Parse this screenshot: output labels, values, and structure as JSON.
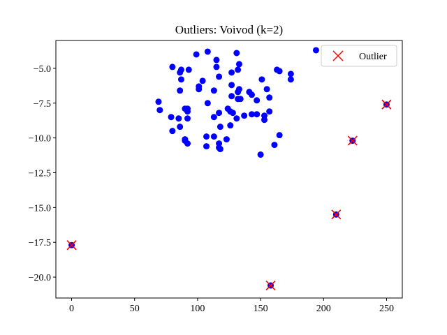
{
  "chart_data": {
    "type": "scatter",
    "title": "Outliers: Voivod (k=2)",
    "xlabel": "",
    "ylabel": "",
    "xlim": [
      -12.5,
      262.5
    ],
    "ylim": [
      -21.5,
      -3.0
    ],
    "xticks": [
      0,
      50,
      100,
      150,
      200,
      250
    ],
    "yticks": [
      -5.0,
      -7.5,
      -10.0,
      -12.5,
      -15.0,
      -17.5,
      -20.0
    ],
    "xtick_labels": [
      "0",
      "50",
      "100",
      "150",
      "200",
      "250"
    ],
    "ytick_labels": [
      "−5.0",
      "−7.5",
      "−10.0",
      "−12.5",
      "−15.0",
      "−17.5",
      "−20.0"
    ],
    "grid": false,
    "legend_position": "top-right",
    "series": [
      {
        "color": "#0000ff",
        "marker": "circle",
        "points": [
          [
            194,
            -3.7
          ],
          [
            108,
            -3.8
          ],
          [
            99,
            -4.0
          ],
          [
            131,
            -3.9
          ],
          [
            115,
            -4.4
          ],
          [
            80,
            -4.9
          ],
          [
            115,
            -4.9
          ],
          [
            87,
            -5.1
          ],
          [
            93,
            -5.1
          ],
          [
            86,
            -5.3
          ],
          [
            133,
            -4.7
          ],
          [
            132,
            -5.1
          ],
          [
            127,
            -5.3
          ],
          [
            163,
            -5.1
          ],
          [
            165,
            -5.2
          ],
          [
            174,
            -5.4
          ],
          [
            151,
            -5.8
          ],
          [
            174,
            -5.8
          ],
          [
            117,
            -5.6
          ],
          [
            87,
            -5.8
          ],
          [
            104,
            -5.9
          ],
          [
            101,
            -6.3
          ],
          [
            127,
            -6.2
          ],
          [
            101,
            -6.5
          ],
          [
            86,
            -6.6
          ],
          [
            133,
            -6.5
          ],
          [
            132,
            -6.7
          ],
          [
            113,
            -6.6
          ],
          [
            141,
            -6.7
          ],
          [
            143,
            -6.9
          ],
          [
            155,
            -6.5
          ],
          [
            157,
            -7.1
          ],
          [
            69,
            -7.4
          ],
          [
            108,
            -7.5
          ],
          [
            127,
            -7.0
          ],
          [
            134,
            -7.2
          ],
          [
            132,
            -7.2
          ],
          [
            147,
            -7.3
          ],
          [
            70,
            -8.0
          ],
          [
            90,
            -7.9
          ],
          [
            92,
            -8.1
          ],
          [
            92,
            -7.9
          ],
          [
            124,
            -7.9
          ],
          [
            117,
            -8.2
          ],
          [
            113,
            -8.5
          ],
          [
            128,
            -8.2
          ],
          [
            126,
            -8.1
          ],
          [
            143,
            -8.3
          ],
          [
            137,
            -8.4
          ],
          [
            147,
            -8.3
          ],
          [
            153,
            -8.4
          ],
          [
            157,
            -8.1
          ],
          [
            153,
            -8.7
          ],
          [
            79,
            -8.5
          ],
          [
            85,
            -8.6
          ],
          [
            92,
            -8.6
          ],
          [
            131,
            -8.6
          ],
          [
            86,
            -9.2
          ],
          [
            80,
            -9.5
          ],
          [
            118,
            -9.2
          ],
          [
            126,
            -9.1
          ],
          [
            90,
            -10.1
          ],
          [
            92,
            -10.4
          ],
          [
            90,
            -10.2
          ],
          [
            107,
            -9.9
          ],
          [
            113,
            -9.9
          ],
          [
            123,
            -10.1
          ],
          [
            165,
            -9.8
          ],
          [
            117,
            -10.4
          ],
          [
            107,
            -10.6
          ],
          [
            117,
            -10.7
          ],
          [
            118,
            -10.8
          ],
          [
            161,
            -10.5
          ],
          [
            150,
            -11.2
          ],
          [
            0,
            -17.7
          ],
          [
            158,
            -20.6
          ],
          [
            210,
            -15.5
          ],
          [
            223,
            -10.2
          ],
          [
            250,
            -7.6
          ]
        ]
      },
      {
        "name": "Outlier",
        "color": "#ff0000",
        "marker": "x",
        "points": [
          [
            0,
            -17.7
          ],
          [
            158,
            -20.6
          ],
          [
            210,
            -15.5
          ],
          [
            223,
            -10.2
          ],
          [
            250,
            -7.6
          ]
        ]
      }
    ]
  }
}
